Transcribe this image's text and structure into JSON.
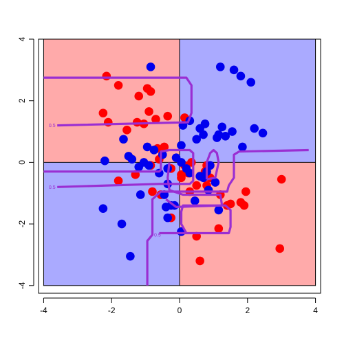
{
  "chart_data": {
    "type": "scatter",
    "title": "",
    "xlabel": "",
    "ylabel": "",
    "xlim": [
      -4.15,
      4.15
    ],
    "ylim": [
      -4.25,
      4.0
    ],
    "xticks": [
      -4,
      -2,
      0,
      2,
      4
    ],
    "yticks": [
      -4,
      -2,
      0,
      2,
      4
    ],
    "xtick_labels": [
      "-4",
      "-2",
      "0",
      "2",
      "4"
    ],
    "ytick_labels": [
      "-4",
      "-2",
      "0",
      "2",
      "4"
    ],
    "grid": false,
    "legend": "none",
    "colors": {
      "red_region": "#ffaaaa",
      "blue_region": "#aaaaff",
      "red_points": "#ff0000",
      "blue_points": "#0000ee",
      "contour": "#9a2ed2"
    },
    "regions": [
      {
        "class": "red",
        "x": [
          -4,
          0
        ],
        "y": [
          0,
          4
        ]
      },
      {
        "class": "blue",
        "x": [
          0,
          4
        ],
        "y": [
          0,
          4
        ]
      },
      {
        "class": "blue",
        "x": [
          -4,
          0
        ],
        "y": [
          -4,
          0
        ]
      },
      {
        "class": "red",
        "x": [
          0,
          4
        ],
        "y": [
          -4,
          0
        ]
      }
    ],
    "series": [
      {
        "color": "red",
        "x": [
          -2.15,
          -1.8,
          -1.2,
          -0.95,
          -0.85,
          -2.25,
          -2.1,
          -1.55,
          -1.25,
          -1.05,
          -0.9,
          -0.7,
          -0.35,
          0.15,
          0.35,
          -0.65,
          -0.45,
          -0.25,
          0.05,
          -0.8,
          -0.55,
          0.25,
          0.5,
          0.8,
          0.9,
          1.2,
          1.4,
          1.5,
          1.8,
          1.9,
          1.95,
          0.8,
          1.15,
          0.5,
          0.6,
          0.75,
          0.05,
          -1.8,
          -1.3,
          -0.85,
          -0.6,
          -0.25,
          2.95,
          3.0,
          0.3,
          0.15
        ],
        "y": [
          2.8,
          2.5,
          2.15,
          2.4,
          2.3,
          1.6,
          1.3,
          1.05,
          1.3,
          1.25,
          1.65,
          1.4,
          1.5,
          1.45,
          0.0,
          0.45,
          0.5,
          -0.2,
          -0.4,
          -0.95,
          -1.05,
          -0.35,
          -0.75,
          -0.75,
          -0.5,
          -1.05,
          -1.4,
          -1.35,
          -1.3,
          -1.4,
          -0.95,
          -0.1,
          -2.15,
          -2.4,
          -3.2,
          -0.3,
          -0.5,
          -0.6,
          -0.4,
          -0.1,
          0.1,
          -1.8,
          -2.8,
          -0.55,
          -0.95,
          -0.1
        ]
      },
      {
        "color": "blue",
        "x": [
          -0.85,
          1.2,
          1.6,
          1.8,
          2.1,
          -2.2,
          -1.65,
          -1.5,
          -1.4,
          -1.2,
          -1.05,
          -0.95,
          -0.75,
          -0.5,
          -0.35,
          -0.35,
          -0.1,
          0.05,
          0.1,
          0.3,
          0.5,
          0.6,
          0.7,
          0.75,
          0.9,
          1.1,
          1.15,
          1.25,
          1.35,
          1.55,
          1.85,
          2.2,
          2.45,
          -0.45,
          -0.4,
          -0.35,
          -0.25,
          -0.15,
          0.05,
          0.45,
          0.7,
          0.8,
          0.85,
          1.05,
          1.15,
          -2.25,
          -1.7,
          -1.45,
          -1.15,
          0.2,
          0.3,
          0.6,
          -0.9,
          -0.6,
          0.05
        ],
        "y": [
          3.1,
          3.1,
          3.0,
          2.8,
          2.6,
          0.05,
          0.75,
          0.2,
          0.1,
          -0.15,
          0.0,
          0.5,
          0.4,
          0.25,
          -0.2,
          -0.7,
          0.15,
          0.55,
          1.2,
          1.35,
          0.75,
          1.1,
          0.9,
          1.25,
          -0.1,
          0.8,
          0.9,
          1.15,
          0.85,
          1.0,
          0.5,
          1.1,
          0.95,
          -1.05,
          -1.45,
          -1.8,
          -1.4,
          -1.4,
          -2.25,
          -1.25,
          -0.5,
          -0.3,
          -0.9,
          -0.65,
          -1.55,
          -1.5,
          -2.0,
          -3.05,
          -1.05,
          -0.2,
          -0.35,
          -0.45,
          -0.1,
          -0.35,
          0.0
        ]
      }
    ],
    "contour": {
      "level_label": "0.5",
      "paths": [
        [
          [
            -4.0,
            2.75
          ],
          [
            0.2,
            2.75
          ],
          [
            0.35,
            2.5
          ],
          [
            0.35,
            1.6
          ],
          [
            0.25,
            1.3
          ],
          [
            -3.6,
            1.2
          ]
        ],
        [
          [
            -4.0,
            -0.3
          ],
          [
            -0.6,
            -0.3
          ],
          [
            -0.55,
            -0.25
          ],
          [
            -0.55,
            0.35
          ],
          [
            -0.3,
            0.4
          ],
          [
            0.3,
            0.4
          ],
          [
            0.4,
            0.3
          ],
          [
            0.4,
            -0.6
          ],
          [
            0.3,
            -0.7
          ],
          [
            -0.6,
            -0.7
          ],
          [
            -3.6,
            -0.8
          ]
        ],
        [
          [
            -0.95,
            -4.0
          ],
          [
            -0.95,
            -2.55
          ],
          [
            -0.8,
            -2.35
          ],
          [
            -0.8,
            -1.2
          ],
          [
            -0.55,
            -0.95
          ],
          [
            1.4,
            -0.95
          ],
          [
            1.45,
            -0.75
          ],
          [
            1.6,
            -0.5
          ],
          [
            1.6,
            0.25
          ],
          [
            1.75,
            0.35
          ],
          [
            3.8,
            0.4
          ]
        ],
        [
          [
            -0.6,
            -2.3
          ],
          [
            1.45,
            -2.3
          ],
          [
            1.5,
            -2.1
          ],
          [
            1.5,
            -1.55
          ],
          [
            1.35,
            -1.4
          ],
          [
            0.1,
            -1.4
          ],
          [
            0.05,
            -1.6
          ],
          [
            0.05,
            -2.0
          ],
          [
            0.2,
            -2.3
          ]
        ],
        [
          [
            0.8,
            -0.55
          ],
          [
            0.8,
            0.0
          ],
          [
            0.9,
            0.3
          ],
          [
            1.0,
            0.4
          ],
          [
            1.1,
            0.3
          ],
          [
            1.15,
            0.0
          ],
          [
            1.05,
            -0.5
          ],
          [
            0.8,
            -0.55
          ]
        ],
        [
          [
            -0.3,
            0.0
          ],
          [
            -0.35,
            -0.5
          ],
          [
            -0.3,
            -0.9
          ],
          [
            0.1,
            -1.05
          ],
          [
            1.2,
            -1.05
          ],
          [
            1.25,
            -1.4
          ],
          [
            -0.1,
            -1.45
          ],
          [
            -0.4,
            -1.2
          ]
        ]
      ],
      "label_positions": [
        [
          -3.75,
          1.2
        ],
        [
          -3.75,
          -0.8
        ],
        [
          -0.65,
          -2.35
        ]
      ]
    }
  }
}
